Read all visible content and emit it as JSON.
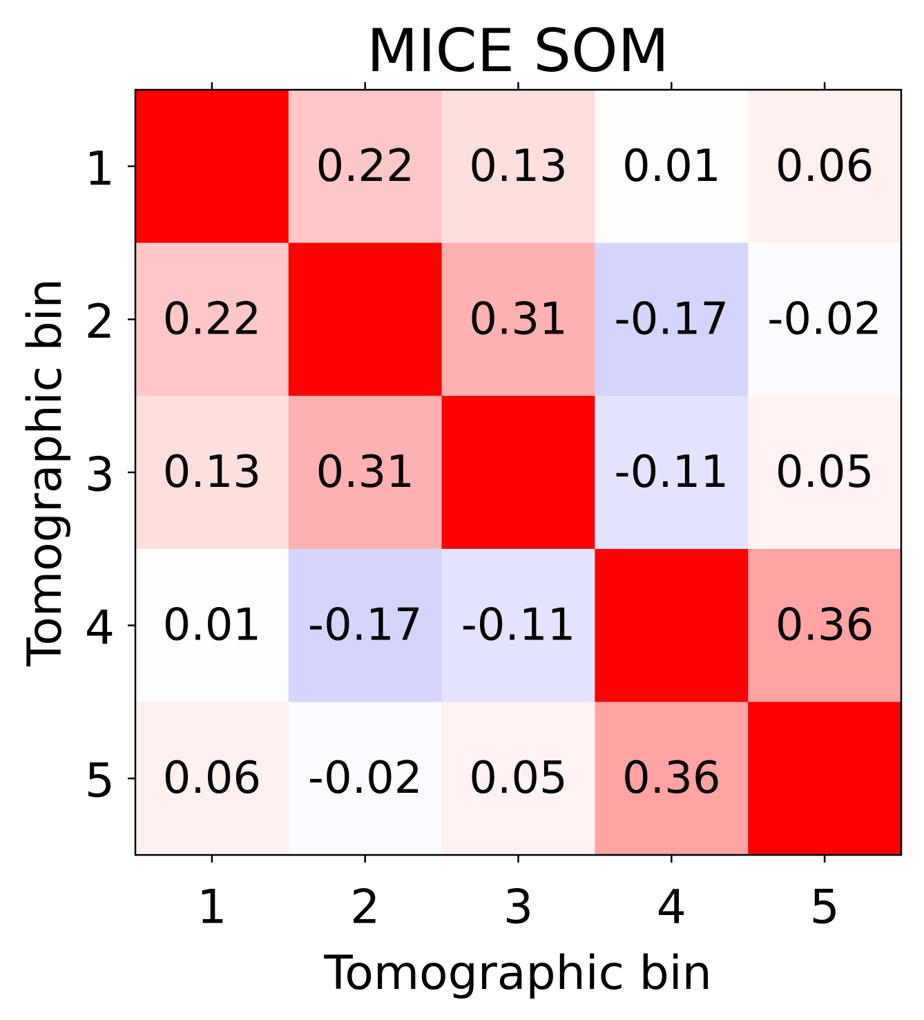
{
  "chart_data": {
    "type": "heatmap",
    "title": "MICE SOM",
    "xlabel": "Tomographic bin",
    "ylabel": "Tomographic bin",
    "x_categories": [
      "1",
      "2",
      "3",
      "4",
      "5"
    ],
    "y_categories": [
      "1",
      "2",
      "3",
      "4",
      "5"
    ],
    "values": [
      [
        null,
        0.22,
        0.13,
        0.01,
        0.06
      ],
      [
        0.22,
        null,
        0.31,
        -0.17,
        -0.02
      ],
      [
        0.13,
        0.31,
        null,
        -0.11,
        0.05
      ],
      [
        0.01,
        -0.17,
        -0.11,
        null,
        0.36
      ],
      [
        0.06,
        -0.02,
        0.05,
        0.36,
        null
      ]
    ],
    "labels": [
      [
        "",
        "0.22",
        "0.13",
        "0.01",
        "0.06"
      ],
      [
        "0.22",
        "",
        "0.31",
        "-0.17",
        "-0.02"
      ],
      [
        "0.13",
        "0.31",
        "",
        "-0.11",
        "0.05"
      ],
      [
        "0.01",
        "-0.17",
        "-0.11",
        "",
        "0.36"
      ],
      [
        "0.06",
        "-0.02",
        "0.05",
        "0.36",
        ""
      ]
    ],
    "colormap": "bwr",
    "color_range": [
      -1,
      1
    ],
    "diagonal_value": 1.0,
    "colors": {
      "diagonal": "#ff0000",
      "light_text": "#ffffff",
      "dark_text": "#000000"
    }
  }
}
